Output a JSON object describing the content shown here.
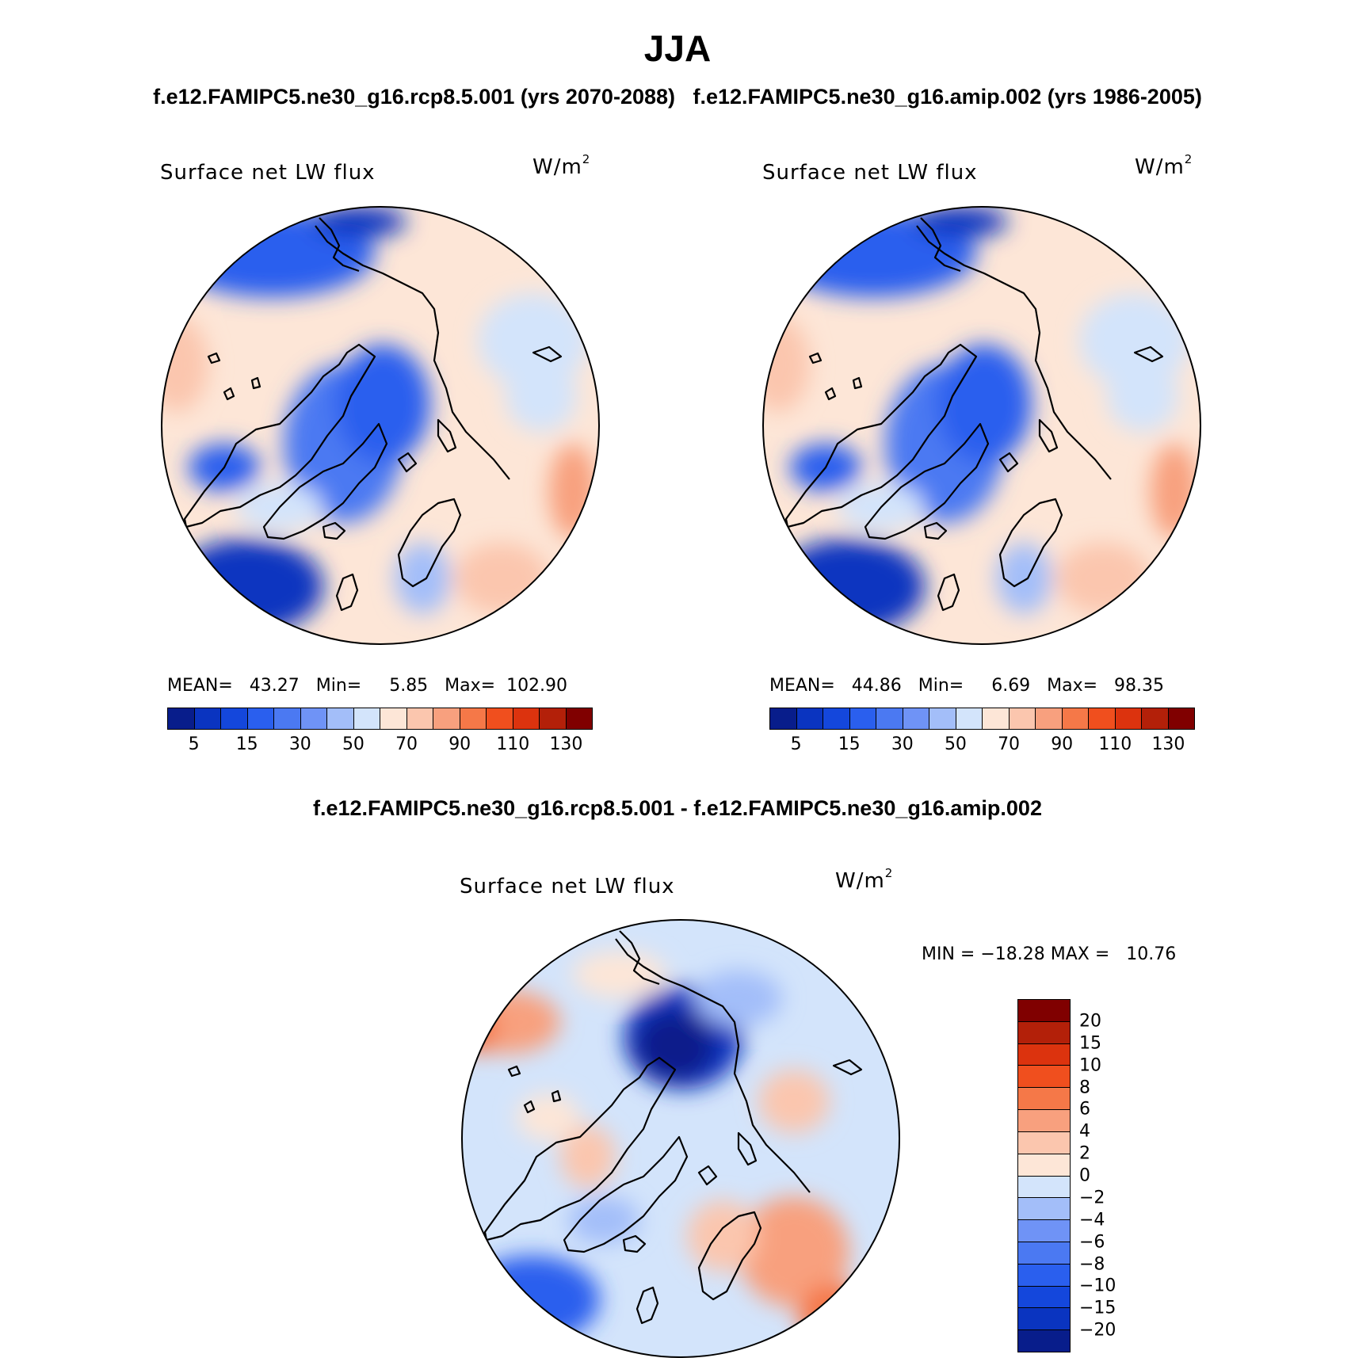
{
  "figure": {
    "season": "JJA",
    "case_titles": "f.e12.FAMIPC5.ne30_g16.rcp8.5.001 (yrs 2070-2088)   f.e12.FAMIPC5.ne30_g16.amip.002 (yrs 1986-2005)",
    "diff_title": "f.e12.FAMIPC5.ne30_g16.rcp8.5.001 - f.e12.FAMIPC5.ne30_g16.amip.002"
  },
  "panels": [
    {
      "variable": "Surface net LW flux",
      "units": "W/m",
      "units_exp": "2",
      "stats_label": "MEAN=   43.27   Min=     5.85   Max=  102.90",
      "mean": 43.27,
      "min": 5.85,
      "max": 102.9
    },
    {
      "variable": "Surface net LW flux",
      "units": "W/m",
      "units_exp": "2",
      "stats_label": "MEAN=   44.86   Min=     6.69   Max=   98.35",
      "mean": 44.86,
      "min": 6.69,
      "max": 98.35
    },
    {
      "variable": "Surface net LW flux",
      "units": "W/m",
      "units_exp": "2",
      "stats_label": "MIN = −18.28 MAX =   10.76",
      "min": -18.28,
      "max": 10.76
    }
  ],
  "colorbar_abs": {
    "colors": [
      "#081d8b",
      "#0a34c0",
      "#1447dc",
      "#2a5fee",
      "#4b79f2",
      "#6f93f6",
      "#a3bef9",
      "#d3e4fb",
      "#fde6d7",
      "#fbc6ae",
      "#f8a07e",
      "#f57848",
      "#f04f1e",
      "#dc330e",
      "#b32009",
      "#800000"
    ],
    "labels": [
      "5",
      "15",
      "30",
      "50",
      "70",
      "90",
      "110",
      "130"
    ],
    "label_positions": [
      1,
      3,
      5,
      7,
      9,
      11,
      13,
      15
    ]
  },
  "colorbar_diff": {
    "colors": [
      "#800000",
      "#b32009",
      "#dc330e",
      "#f04f1e",
      "#f57848",
      "#f8a07e",
      "#fbc6ae",
      "#fde6d7",
      "#d3e4fb",
      "#a3bef9",
      "#6f93f6",
      "#4b79f2",
      "#2a5fee",
      "#1447dc",
      "#0a34c0",
      "#081d8b"
    ],
    "labels": [
      "20",
      "15",
      "10",
      "8",
      "6",
      "4",
      "2",
      "0",
      "−2",
      "−4",
      "−6",
      "−8",
      "−10",
      "−15",
      "−20"
    ]
  },
  "map_colors": {
    "deep_blue": "#0a34c0",
    "blue": "#2a5fee",
    "mid_blue": "#4b79f2",
    "light_blue": "#a3bef9",
    "pale_blue": "#d3e4fb",
    "cream": "#fde6d7",
    "peach": "#fbc6ae",
    "salmon": "#f8a07e",
    "orange": "#f57848",
    "red": "#dc330e"
  },
  "chart_data": [
    {
      "type": "heatmap",
      "title": "Surface net LW flux",
      "units": "W/m2",
      "projection": "north polar stereographic",
      "stats": {
        "mean": 43.27,
        "min": 5.85,
        "max": 102.9
      },
      "contour_levels": [
        5,
        10,
        15,
        20,
        30,
        40,
        50,
        60,
        70,
        80,
        90,
        100,
        110,
        120,
        130
      ]
    },
    {
      "type": "heatmap",
      "title": "Surface net LW flux",
      "units": "W/m2",
      "projection": "north polar stereographic",
      "stats": {
        "mean": 44.86,
        "min": 6.69,
        "max": 98.35
      },
      "contour_levels": [
        5,
        10,
        15,
        20,
        30,
        40,
        50,
        60,
        70,
        80,
        90,
        100,
        110,
        120,
        130
      ]
    },
    {
      "type": "heatmap",
      "title": "Surface net LW flux",
      "units": "W/m2",
      "projection": "north polar stereographic",
      "stats": {
        "min": -18.28,
        "max": 10.76
      },
      "contour_levels": [
        -20,
        -15,
        -10,
        -8,
        -6,
        -4,
        -2,
        0,
        2,
        4,
        6,
        8,
        10,
        15,
        20
      ]
    }
  ]
}
